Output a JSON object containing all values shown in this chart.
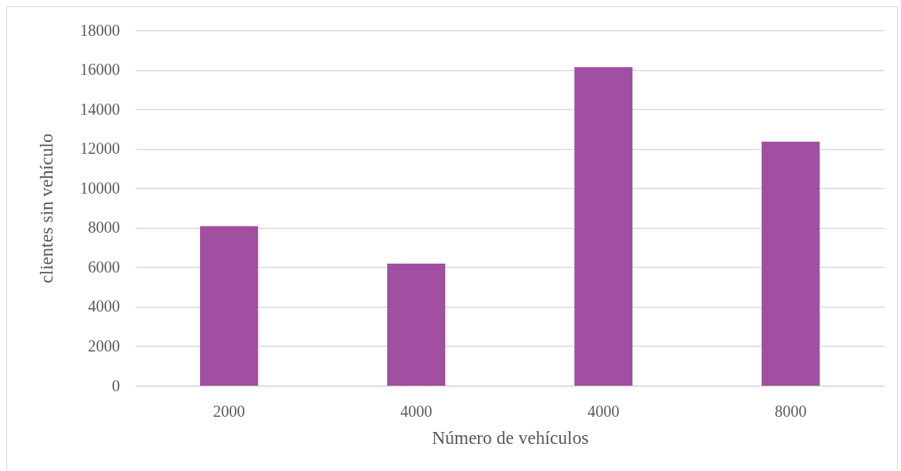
{
  "chart_data": {
    "type": "bar",
    "categories": [
      "2000",
      "4000",
      "4000",
      "8000"
    ],
    "values": [
      8080,
      6190,
      16130,
      12360
    ],
    "color": "#a04fa1",
    "xlabel": "Número de vehículos",
    "ylabel": "clientes sin vehículo",
    "ylim": [
      0,
      18000
    ],
    "yticks": [
      0,
      2000,
      4000,
      6000,
      8000,
      10000,
      12000,
      14000,
      16000,
      18000
    ],
    "grid": "y"
  }
}
